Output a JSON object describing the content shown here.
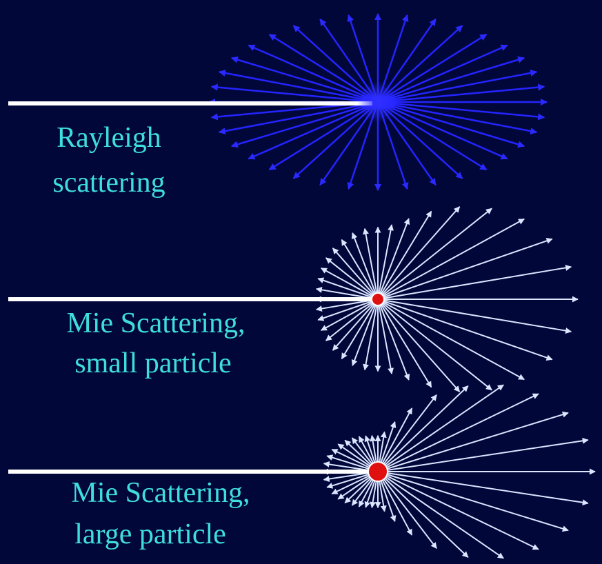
{
  "panels": [
    {
      "label_lines": [
        "Rayleigh",
        "scattering"
      ]
    },
    {
      "label_lines": [
        "Mie Scattering,",
        "small particle"
      ]
    },
    {
      "label_lines": [
        "Mie Scattering,",
        "large particle"
      ]
    }
  ]
}
